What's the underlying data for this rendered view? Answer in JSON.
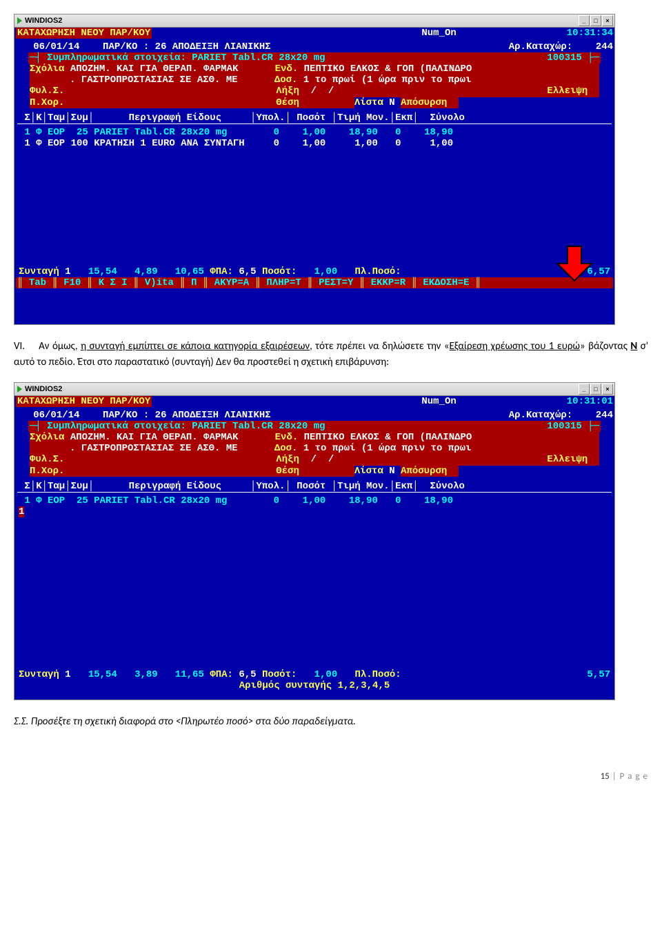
{
  "window_title": "WINDIOS2",
  "colors": {
    "terminal_bg": "#0000a8",
    "highlight_bg": "#a80000",
    "yellow": "#fcfc54",
    "cyan": "#00fcfc",
    "white": "#ffffff",
    "arrow_fill": "#ff0000",
    "arrow_stroke": "#000000"
  },
  "screen1": {
    "app_title": "ΚΑΤΑΧΩΡΗΣΗ ΝΕΟΥ ΠΑΡ/ΚΟΥ",
    "status": "Num_On",
    "time": "10:31:34",
    "date": "06/01/14",
    "doc_type_label": "ΠΑΡ/ΚΟ :",
    "doc_type_value": "26 ΑΠΟΔΕΙΞΗ ΛΙΑΝΙΚΗΣ",
    "entry_no_label": "Αρ.Καταχώρ:",
    "entry_no": "244",
    "suppl_label": "Συμπληρωματικά στοιχεία:",
    "suppl_value": "PARIET Tabl.CR 28x20 mg",
    "suppl_code": "100315",
    "sxolia_label": "Σχόλια",
    "sxolia_value": "ΑΠΟΖΗΜ. ΚΑΙ ΓΙΑ ΘΕΡΑΠ. ΦΑΡΜΑΚ",
    "sxolia_value2": ". ΓΑΣΤΡΟΠΡΟΣΤΑΣΙΑΣ ΣΕ ΑΣΘ. ΜΕ",
    "end_label": "Ενδ.",
    "end_value": "ΠΕΠΤΙΚΟ ΕΛΚΟΣ & ΓΟΠ (ΠΑΛΙΝΔΡΟ",
    "dos_label": "Δοσ.",
    "dos_value": "1 το πρωί (1 ώρα πριν το πρωι",
    "fyl_label": "Φυλ.Σ.",
    "lixi_label": "Λήξη",
    "lixi_value": "  /  /",
    "elleipsi_label": "Ελλειψη",
    "pxor_label": "Π.Χορ.",
    "thesi_label": "Θέση",
    "lista_label": "Λίστα",
    "lista_value": "N",
    "aposirsi_label": "Απόσυρση",
    "table_headers": [
      "Σ",
      "Κ",
      "Ταμ",
      "Συμ",
      "Περιγραφή Είδους",
      "Υπολ.",
      "Ποσότ",
      "Τιμή Μον.",
      "Εκπ",
      "Σύνολο"
    ],
    "rows": [
      {
        "s": "1",
        "k": "Φ",
        "tam": "EOP",
        "sym": "25",
        "desc": "PARIET Tabl.CR 28x20 mg",
        "ypol": "0",
        "posot": "1,00",
        "timi": "18,90",
        "ekp": "0",
        "synolo": "18,90",
        "color": "cyan"
      },
      {
        "s": "1",
        "k": "Φ",
        "tam": "EOP",
        "sym": "100",
        "desc": "ΚΡΑΤΗΣΗ 1 EURO ANA ΣΥΝΤΑΓΗ",
        "ypol": "0",
        "posot": "1,00",
        "timi": "1,00",
        "ekp": "0",
        "synolo": "1,00",
        "color": "white"
      }
    ],
    "footer_line": {
      "syntagi": "Συνταγή",
      "syntagi_val": "1",
      "v1": "15,54",
      "v2": "4,89",
      "v3": "10,65",
      "fpa_label": "ΦΠΑ:",
      "fpa": "6,5",
      "posot_label": "Ποσότ:",
      "posot": "1,00",
      "plposo_label": "Πλ.Ποσό:",
      "plposo": "6,57"
    },
    "menubar": [
      "Tab",
      "F10",
      "Κ Σ Ι",
      "V)ita",
      "Π",
      "ΑΚΥΡ=Α",
      "ΠΛΗΡ=Τ",
      "ΡΕΣΤ=Υ",
      "ΕΚΚΡ=R",
      "ΕΚΔΟΣΗ=Ε"
    ]
  },
  "paragraph1": {
    "number": "VI.",
    "text_parts": [
      {
        "t": "Αν όμως, "
      },
      {
        "t": "η συνταγή εμπίπτει σε κάποια κατηγορία εξαιρέσεων",
        "u": true
      },
      {
        "t": ", τότε πρέπει να δηλώσετε την «"
      },
      {
        "t": "Εξαίρεση χρέωσης του 1 ευρώ",
        "u": true
      },
      {
        "t": "» βάζοντας  "
      },
      {
        "t": "Ν",
        "b": true
      },
      {
        "t": "  σ' αυτό το πεδίο. Έτσι στο παραστατικό (συνταγή) Δεν θα προστεθεί η σχετική επιβάρυνση:"
      }
    ]
  },
  "screen2": {
    "app_title": "ΚΑΤΑΧΩΡΗΣΗ ΝΕΟΥ ΠΑΡ/ΚΟΥ",
    "status": "Num_On",
    "time": "10:31:01",
    "date": "06/01/14",
    "doc_type_label": "ΠΑΡ/ΚΟ :",
    "doc_type_value": "26 ΑΠΟΔΕΙΞΗ ΛΙΑΝΙΚΗΣ",
    "entry_no_label": "Αρ.Καταχώρ:",
    "entry_no": "244",
    "suppl_label": "Συμπληρωματικά στοιχεία:",
    "suppl_value": "PARIET Tabl.CR 28x20 mg",
    "suppl_code": "100315",
    "sxolia_label": "Σχόλια",
    "sxolia_value": "ΑΠΟΖΗΜ. ΚΑΙ ΓΙΑ ΘΕΡΑΠ. ΦΑΡΜΑΚ",
    "sxolia_value2": ". ΓΑΣΤΡΟΠΡΟΣΤΑΣΙΑΣ ΣΕ ΑΣΘ. ΜΕ",
    "end_label": "Ενδ.",
    "end_value": "ΠΕΠΤΙΚΟ ΕΛΚΟΣ & ΓΟΠ (ΠΑΛΙΝΔΡΟ",
    "dos_label": "Δοσ.",
    "dos_value": "1 το πρωί (1 ώρα πριν το πρωι",
    "fyl_label": "Φυλ.Σ.",
    "lixi_label": "Λήξη",
    "lixi_value": "  /  /",
    "elleipsi_label": "Ελλειψη",
    "pxor_label": "Π.Χορ.",
    "thesi_label": "Θέση",
    "lista_label": "Λίστα",
    "lista_value": "N",
    "aposirsi_label": "Απόσυρση",
    "rows": [
      {
        "s": "1",
        "k": "Φ",
        "tam": "EOP",
        "sym": "25",
        "desc": "PARIET Tabl.CR 28x20 mg",
        "ypol": "0",
        "posot": "1,00",
        "timi": "18,90",
        "ekp": "0",
        "synolo": "18,90",
        "color": "cyan"
      }
    ],
    "row2_s": "1",
    "footer_line": {
      "syntagi": "Συνταγή",
      "syntagi_val": "1",
      "v1": "15,54",
      "v2": "3,89",
      "v3": "11,65",
      "fpa_label": "ΦΠΑ:",
      "fpa": "6,5",
      "posot_label": "Ποσότ:",
      "posot": "1,00",
      "plposo_label": "Πλ.Ποσό:",
      "plposo": "5,57"
    },
    "bottom_msg": "Αριθμός συνταγής 1,2,3,4,5"
  },
  "paragraph2": "Σ.Σ. Προσέξτε τη σχετική διαφορά στο <Πληρωτέο ποσό> στα δύο παραδείγματα.",
  "page_footer": {
    "num": "15",
    "text": "P a g e"
  }
}
